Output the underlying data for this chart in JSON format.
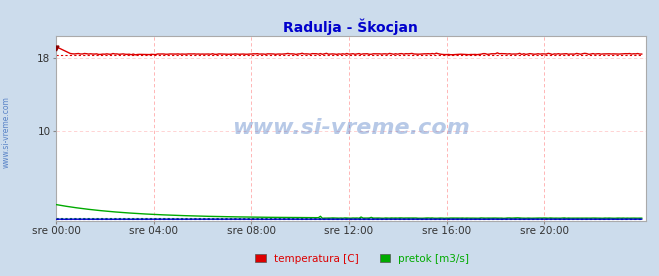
{
  "title": "Radulja - Škocjan",
  "title_color": "#0000cc",
  "title_fontsize": 10,
  "bg_color": "#ccdcec",
  "plot_bg_color": "#ffffff",
  "border_color": "#888888",
  "xlim": [
    0,
    288
  ],
  "ylim": [
    0,
    20.5
  ],
  "yticks": [
    10,
    18
  ],
  "xtick_labels": [
    "sre 00:00",
    "sre 04:00",
    "sre 08:00",
    "sre 12:00",
    "sre 16:00",
    "sre 20:00"
  ],
  "xtick_positions": [
    0,
    48,
    96,
    144,
    192,
    240
  ],
  "grid_color_v": "#ffaaaa",
  "grid_color_h": "#ffcccc",
  "watermark": "www.si-vreme.com",
  "watermark_color": "#3366bb",
  "watermark_alpha": 0.35,
  "sidebar_text": "www.si-vreme.com",
  "sidebar_color": "#3366bb",
  "temp_color": "#dd0000",
  "pretok_color": "#00aa00",
  "visina_color": "#0000cc",
  "legend_temp_color": "#dd0000",
  "legend_pretok_color": "#00aa00",
  "temp_base": 18.5,
  "temp_start": 19.2,
  "pretok_start": 1.5,
  "pretok_mid": 0.4,
  "pretok_end": 0.3,
  "visina_value": 0.18,
  "arrow_color": "#cc0000"
}
